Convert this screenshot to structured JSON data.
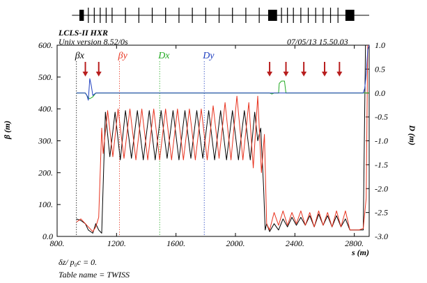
{
  "header": {
    "machine": "LCLS-II HXR",
    "version": "Unix version 8.52/0s",
    "datetime": "07/05/13  15.50.03"
  },
  "footer": {
    "dz_line": "δz/ p₀c  =  0.",
    "table_name": "Table name = TWISS"
  },
  "chart_data": {
    "type": "line",
    "xlabel": "s (m)",
    "ylabel_left": "β (m)",
    "ylabel_right": "D (m)",
    "xlim": [
      800,
      2900
    ],
    "ylim_left": [
      0,
      600
    ],
    "ylim_right": [
      -3.0,
      1.0
    ],
    "x_ticks": [
      "800.",
      "1200.",
      "1600.",
      "2000.",
      "2400.",
      "2800."
    ],
    "x_tick_values": [
      800,
      1200,
      1600,
      2000,
      2400,
      2800
    ],
    "y_left_ticks": [
      "0.0",
      "100.",
      "200.",
      "300.",
      "400.",
      "500.",
      "600."
    ],
    "y_left_tick_values": [
      0,
      100,
      200,
      300,
      400,
      500,
      600
    ],
    "y_right_ticks": [
      "-3.0",
      "-2.5",
      "-2.0",
      "-1.5",
      "-1.0",
      "-0.5",
      "0.0",
      "0.5",
      "1.0"
    ],
    "y_right_tick_values": [
      -3.0,
      -2.5,
      -2.0,
      -1.5,
      -1.0,
      -0.5,
      0.0,
      0.5,
      1.0
    ],
    "legend": [
      {
        "label": "βx",
        "color": "#000000",
        "x": 930
      },
      {
        "label": "βy",
        "color": "#e8321e",
        "x": 1220
      },
      {
        "label": "Dx",
        "color": "#22aa22",
        "x": 1490
      },
      {
        "label": "Dy",
        "color": "#1f3fbf",
        "x": 1790
      }
    ],
    "arrows_s": [
      990,
      1080,
      2230,
      2340,
      2460,
      2600,
      2700
    ],
    "arrow_color": "#b81e1e",
    "lattice_segments": [
      {
        "from": 950,
        "to": 980
      },
      {
        "from": 2220,
        "to": 2280
      },
      {
        "from": 2740,
        "to": 2800
      }
    ],
    "lattice_elements_s": [
      1010,
      1050,
      1090,
      1130,
      1170,
      1260,
      1350,
      1440,
      1530,
      1620,
      1710,
      1800,
      1890,
      1980,
      2070,
      2160,
      2310,
      2350,
      2390,
      2440,
      2490,
      2540,
      2590,
      2640,
      2690
    ],
    "series": [
      {
        "name": "βx",
        "axis": "left",
        "color": "#000000",
        "x": [
          930,
          960,
          990,
          1010,
          1040,
          1060,
          1080,
          1100,
          1125,
          1155,
          1190,
          1225,
          1260,
          1300,
          1340,
          1380,
          1420,
          1460,
          1500,
          1540,
          1580,
          1620,
          1660,
          1700,
          1740,
          1780,
          1820,
          1860,
          1900,
          1940,
          1980,
          2020,
          2060,
          2100,
          2130,
          2150,
          2170,
          2190,
          2200,
          2210,
          2230,
          2260,
          2290,
          2320,
          2350,
          2380,
          2410,
          2440,
          2470,
          2500,
          2530,
          2560,
          2590,
          2620,
          2650,
          2680,
          2710,
          2740,
          2770,
          2800,
          2830,
          2860,
          2875,
          2890
        ],
        "y": [
          55,
          50,
          40,
          20,
          10,
          40,
          20,
          10,
          390,
          250,
          390,
          240,
          395,
          245,
          395,
          240,
          395,
          240,
          395,
          245,
          395,
          240,
          395,
          245,
          395,
          245,
          395,
          240,
          395,
          240,
          395,
          240,
          395,
          240,
          390,
          300,
          340,
          150,
          20,
          40,
          15,
          40,
          20,
          55,
          30,
          60,
          35,
          60,
          35,
          65,
          30,
          70,
          35,
          65,
          30,
          65,
          30,
          55,
          20,
          20,
          20,
          20,
          600,
          600
        ]
      },
      {
        "name": "βy",
        "axis": "left",
        "color": "#e8321e",
        "x": [
          930,
          960,
          990,
          1010,
          1040,
          1060,
          1080,
          1100,
          1110,
          1140,
          1175,
          1210,
          1250,
          1290,
          1330,
          1370,
          1410,
          1450,
          1490,
          1530,
          1570,
          1610,
          1650,
          1690,
          1730,
          1770,
          1810,
          1850,
          1890,
          1930,
          1970,
          2010,
          2050,
          2090,
          2120,
          2150,
          2175,
          2195,
          2210,
          2230,
          2260,
          2290,
          2320,
          2350,
          2380,
          2410,
          2440,
          2470,
          2500,
          2530,
          2560,
          2590,
          2620,
          2650,
          2680,
          2710,
          2740,
          2770,
          2800,
          2830,
          2860,
          2880,
          2890
        ],
        "y": [
          45,
          55,
          40,
          30,
          15,
          30,
          60,
          340,
          260,
          395,
          250,
          400,
          245,
          400,
          240,
          400,
          240,
          400,
          240,
          400,
          240,
          400,
          240,
          400,
          240,
          400,
          240,
          410,
          245,
          420,
          240,
          440,
          240,
          420,
          215,
          440,
          200,
          320,
          40,
          20,
          75,
          35,
          80,
          35,
          75,
          40,
          80,
          35,
          75,
          30,
          80,
          35,
          75,
          30,
          80,
          30,
          80,
          20,
          20,
          20,
          25,
          120,
          600
        ]
      },
      {
        "name": "Dx",
        "axis": "right",
        "color": "#22aa22",
        "x": [
          930,
          990,
          1000,
          1010,
          1020,
          1040,
          1060,
          2230,
          2245,
          2260,
          2290,
          2295,
          2310,
          2320,
          2330,
          2340,
          2880,
          2900
        ],
        "y": [
          0,
          0,
          -0.05,
          -0.1,
          -0.12,
          -0.08,
          0,
          0,
          -0.02,
          0,
          0,
          0.2,
          0.25,
          0.25,
          0.25,
          0,
          0,
          0
        ]
      },
      {
        "name": "Dy",
        "axis": "right",
        "color": "#1f3fbf",
        "x": [
          930,
          990,
          1000,
          1010,
          1020,
          1030,
          1040,
          1060,
          2860,
          2870,
          2880,
          2890,
          2900
        ],
        "y": [
          0,
          0,
          -0.05,
          -0.15,
          0.3,
          0.15,
          -0.05,
          0,
          0,
          0.1,
          0.4,
          0.9,
          1.0
        ]
      }
    ]
  }
}
